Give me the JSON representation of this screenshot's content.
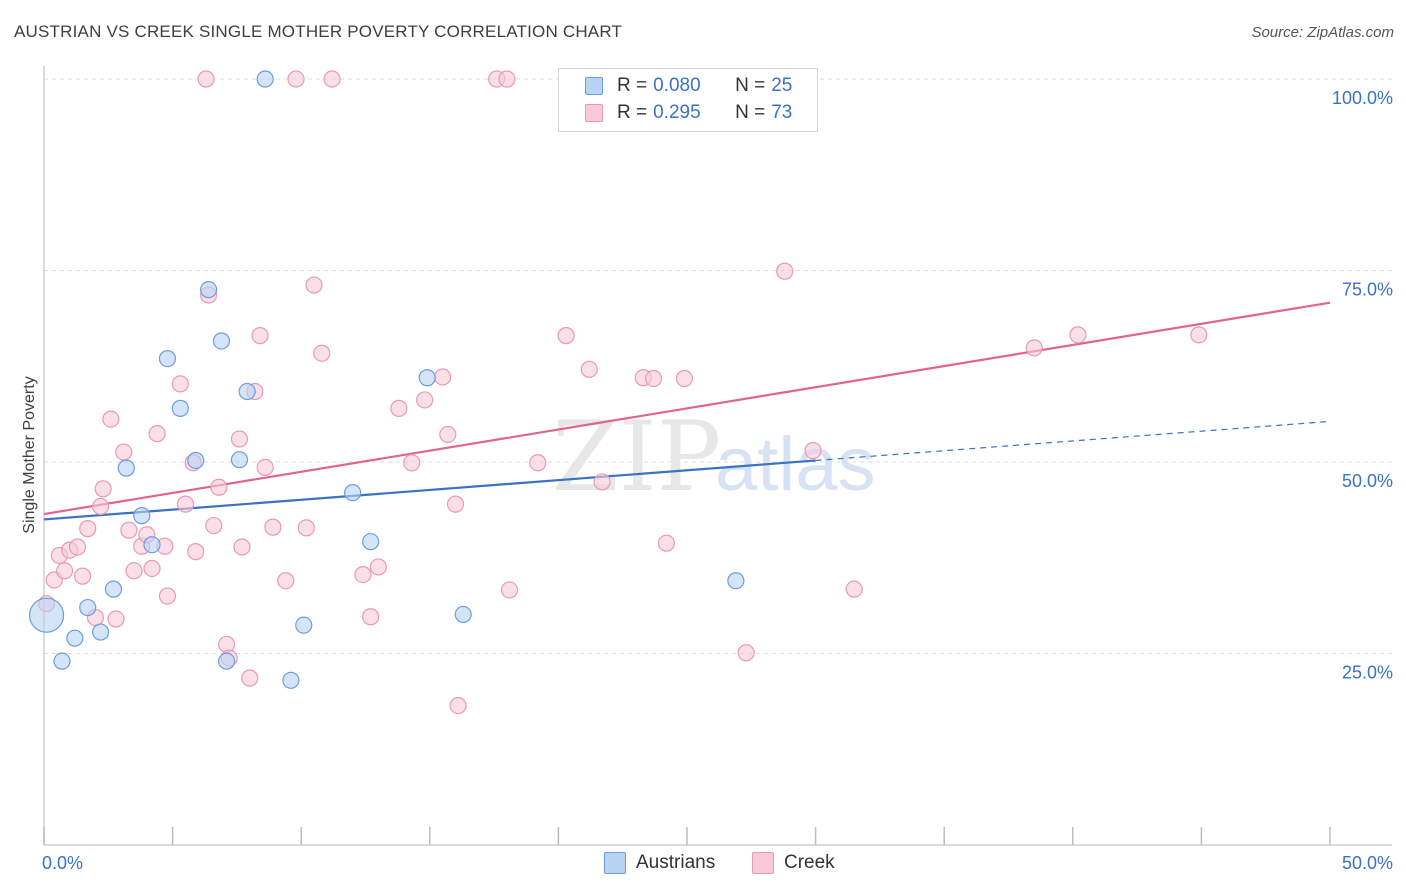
{
  "header": {
    "title": "AUSTRIAN VS CREEK SINGLE MOTHER POVERTY CORRELATION CHART",
    "source": "Source: ZipAtlas.com"
  },
  "watermark": {
    "zip": "ZIP",
    "atlas": "atlas"
  },
  "legend": {
    "r_label": "R =",
    "n_label": "N =",
    "series": [
      {
        "name": "Austrians",
        "r": "0.080",
        "n": "25",
        "fill": "#b8d3f3",
        "stroke": "#6d9de0"
      },
      {
        "name": "Creek",
        "r": "0.295",
        "n": "73",
        "fill": "#f9c9d8",
        "stroke": "#e89ab4"
      }
    ]
  },
  "chart_data": {
    "type": "scatter",
    "title": "AUSTRIAN VS CREEK SINGLE MOTHER POVERTY CORRELATION CHART",
    "xlabel": "",
    "ylabel": "Single Mother Poverty",
    "xlim": [
      0,
      50
    ],
    "ylim": [
      0,
      100
    ],
    "x_tick_labels": [
      "0.0%",
      "50.0%"
    ],
    "y_tick_labels": [
      "25.0%",
      "50.0%",
      "75.0%",
      "100.0%"
    ],
    "y_tick_values": [
      25,
      50,
      75,
      100
    ],
    "series": [
      {
        "name": "Austrians",
        "color": "#3a72c4",
        "fill": "#b8d3f3",
        "stroke": "#6d9de0",
        "trend": {
          "x0": 0,
          "y0": 42.5,
          "x1": 30,
          "y1": 50.2,
          "dash_x1": 50,
          "dash_y1": 55.3
        },
        "points": [
          [
            0.1,
            30.0
          ],
          [
            0.7,
            24.0
          ],
          [
            1.2,
            27.0
          ],
          [
            1.7,
            31.0
          ],
          [
            2.2,
            27.8
          ],
          [
            2.7,
            33.4
          ],
          [
            3.2,
            49.2
          ],
          [
            3.8,
            43.0
          ],
          [
            4.2,
            39.2
          ],
          [
            4.8,
            63.5
          ],
          [
            5.3,
            57.0
          ],
          [
            5.9,
            50.2
          ],
          [
            6.4,
            72.5
          ],
          [
            6.9,
            65.8
          ],
          [
            7.1,
            24.0
          ],
          [
            7.9,
            59.2
          ],
          [
            7.6,
            50.3
          ],
          [
            8.6,
            100.0
          ],
          [
            9.6,
            21.5
          ],
          [
            10.1,
            28.7
          ],
          [
            12.0,
            46.0
          ],
          [
            12.7,
            39.6
          ],
          [
            14.9,
            61.0
          ],
          [
            16.3,
            30.1
          ],
          [
            26.9,
            34.5
          ]
        ]
      },
      {
        "name": "Creek",
        "color": "#e0648f",
        "fill": "#f9c9d8",
        "stroke": "#e89ab4",
        "trend": {
          "x0": 0,
          "y0": 43.2,
          "x1": 50,
          "y1": 70.8
        },
        "points": [
          [
            0.1,
            31.5
          ],
          [
            0.4,
            34.6
          ],
          [
            0.6,
            37.8
          ],
          [
            0.8,
            35.8
          ],
          [
            1.0,
            38.5
          ],
          [
            1.3,
            38.9
          ],
          [
            1.5,
            35.1
          ],
          [
            1.7,
            41.3
          ],
          [
            2.0,
            29.7
          ],
          [
            2.2,
            44.2
          ],
          [
            2.3,
            46.5
          ],
          [
            2.6,
            55.6
          ],
          [
            2.8,
            29.5
          ],
          [
            3.1,
            51.3
          ],
          [
            3.3,
            41.1
          ],
          [
            3.5,
            35.8
          ],
          [
            3.8,
            39.0
          ],
          [
            4.0,
            40.5
          ],
          [
            4.2,
            36.1
          ],
          [
            4.4,
            53.7
          ],
          [
            4.7,
            39.0
          ],
          [
            4.8,
            32.5
          ],
          [
            5.3,
            60.2
          ],
          [
            5.5,
            44.5
          ],
          [
            5.8,
            49.9
          ],
          [
            5.9,
            38.3
          ],
          [
            6.3,
            100.0
          ],
          [
            6.4,
            71.8
          ],
          [
            6.6,
            41.7
          ],
          [
            6.8,
            46.7
          ],
          [
            7.1,
            26.2
          ],
          [
            7.2,
            24.4
          ],
          [
            7.6,
            53.0
          ],
          [
            7.7,
            38.9
          ],
          [
            8.0,
            21.8
          ],
          [
            8.2,
            59.2
          ],
          [
            8.4,
            66.5
          ],
          [
            8.6,
            49.3
          ],
          [
            8.9,
            41.5
          ],
          [
            9.4,
            34.5
          ],
          [
            9.8,
            100.0
          ],
          [
            10.2,
            41.4
          ],
          [
            10.5,
            73.1
          ],
          [
            10.8,
            64.2
          ],
          [
            11.2,
            100.0
          ],
          [
            12.4,
            35.3
          ],
          [
            12.7,
            29.8
          ],
          [
            13.0,
            36.3
          ],
          [
            13.8,
            57.0
          ],
          [
            14.3,
            49.9
          ],
          [
            14.8,
            58.1
          ],
          [
            15.5,
            61.1
          ],
          [
            15.7,
            53.6
          ],
          [
            16.1,
            18.2
          ],
          [
            16.0,
            44.5
          ],
          [
            17.6,
            100.0
          ],
          [
            18.0,
            100.0
          ],
          [
            18.1,
            33.3
          ],
          [
            19.2,
            49.9
          ],
          [
            20.3,
            66.5
          ],
          [
            21.2,
            62.1
          ],
          [
            21.7,
            47.4
          ],
          [
            23.3,
            61.0
          ],
          [
            23.7,
            60.9
          ],
          [
            24.2,
            39.4
          ],
          [
            24.9,
            60.9
          ],
          [
            27.3,
            25.1
          ],
          [
            28.8,
            74.9
          ],
          [
            29.9,
            51.5
          ],
          [
            31.5,
            33.4
          ],
          [
            38.5,
            64.9
          ],
          [
            40.2,
            66.6
          ],
          [
            44.9,
            66.6
          ]
        ]
      }
    ]
  }
}
